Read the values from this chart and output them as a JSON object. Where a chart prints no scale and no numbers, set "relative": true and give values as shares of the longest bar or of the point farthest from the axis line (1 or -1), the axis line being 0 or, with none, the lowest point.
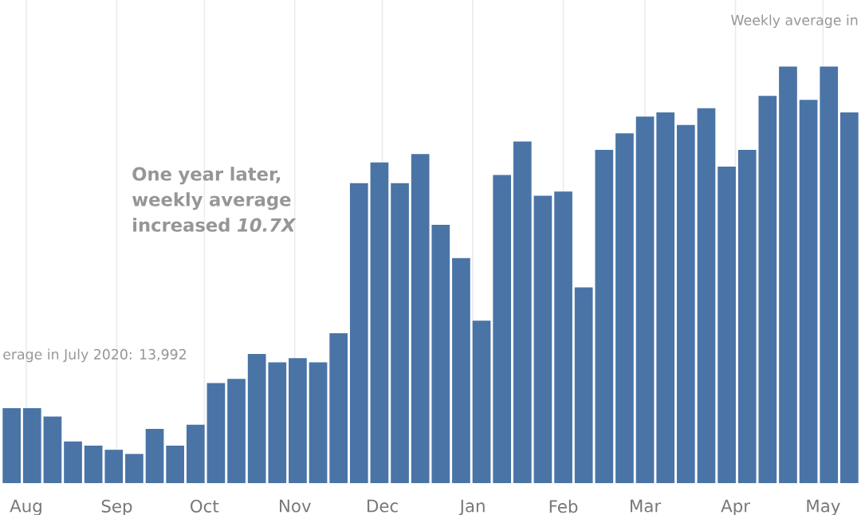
{
  "chart_data": {
    "type": "bar",
    "relative": true,
    "color": "#4a74a6",
    "x": [
      "2020-07-27",
      "2020-08-03",
      "2020-08-10",
      "2020-08-17",
      "2020-08-24",
      "2020-08-31",
      "2020-09-07",
      "2020-09-14",
      "2020-09-21",
      "2020-09-28",
      "2020-10-05",
      "2020-10-12",
      "2020-10-19",
      "2020-10-26",
      "2020-11-02",
      "2020-11-09",
      "2020-11-16",
      "2020-11-23",
      "2020-11-30",
      "2020-12-07",
      "2020-12-14",
      "2020-12-21",
      "2020-12-28",
      "2021-01-04",
      "2021-01-11",
      "2021-01-18",
      "2021-01-25",
      "2021-02-01",
      "2021-02-08",
      "2021-02-15",
      "2021-02-22",
      "2021-03-01",
      "2021-03-08",
      "2021-03-15",
      "2021-03-22",
      "2021-03-29",
      "2021-04-05",
      "2021-04-12",
      "2021-04-19",
      "2021-04-26",
      "2021-05-03",
      "2021-05-10"
    ],
    "values": [
      0.18,
      0.18,
      0.16,
      0.1,
      0.09,
      0.08,
      0.07,
      0.13,
      0.09,
      0.14,
      0.24,
      0.25,
      0.31,
      0.29,
      0.3,
      0.29,
      0.36,
      0.72,
      0.77,
      0.72,
      0.79,
      0.62,
      0.54,
      0.39,
      0.74,
      0.82,
      0.69,
      0.7,
      0.47,
      0.8,
      0.84,
      0.88,
      0.89,
      0.86,
      0.9,
      0.76,
      0.8,
      0.93,
      1.0,
      0.92,
      1.0,
      0.89
    ],
    "xlim": [
      "2020-07-23",
      "2021-05-14"
    ],
    "xticks": [
      {
        "value": "2020-08-01",
        "label": "Aug"
      },
      {
        "value": "2020-09-01",
        "label": "Sep"
      },
      {
        "value": "2020-10-01",
        "label": "Oct"
      },
      {
        "value": "2020-11-01",
        "label": "Nov"
      },
      {
        "value": "2020-12-01",
        "label": "Dec"
      },
      {
        "value": "2021-01-01",
        "label": "Jan"
      },
      {
        "value": "2021-02-01",
        "label": "Feb"
      },
      {
        "value": "2021-03-01",
        "label": "Mar"
      },
      {
        "value": "2021-04-01",
        "label": "Apr"
      },
      {
        "value": "2021-05-01",
        "label": "May"
      }
    ],
    "grid": "x",
    "annotations": [
      "One year later, weekly average increased *10.7X*",
      "erage in July 2020: 13,992",
      "Weekly average in"
    ]
  }
}
